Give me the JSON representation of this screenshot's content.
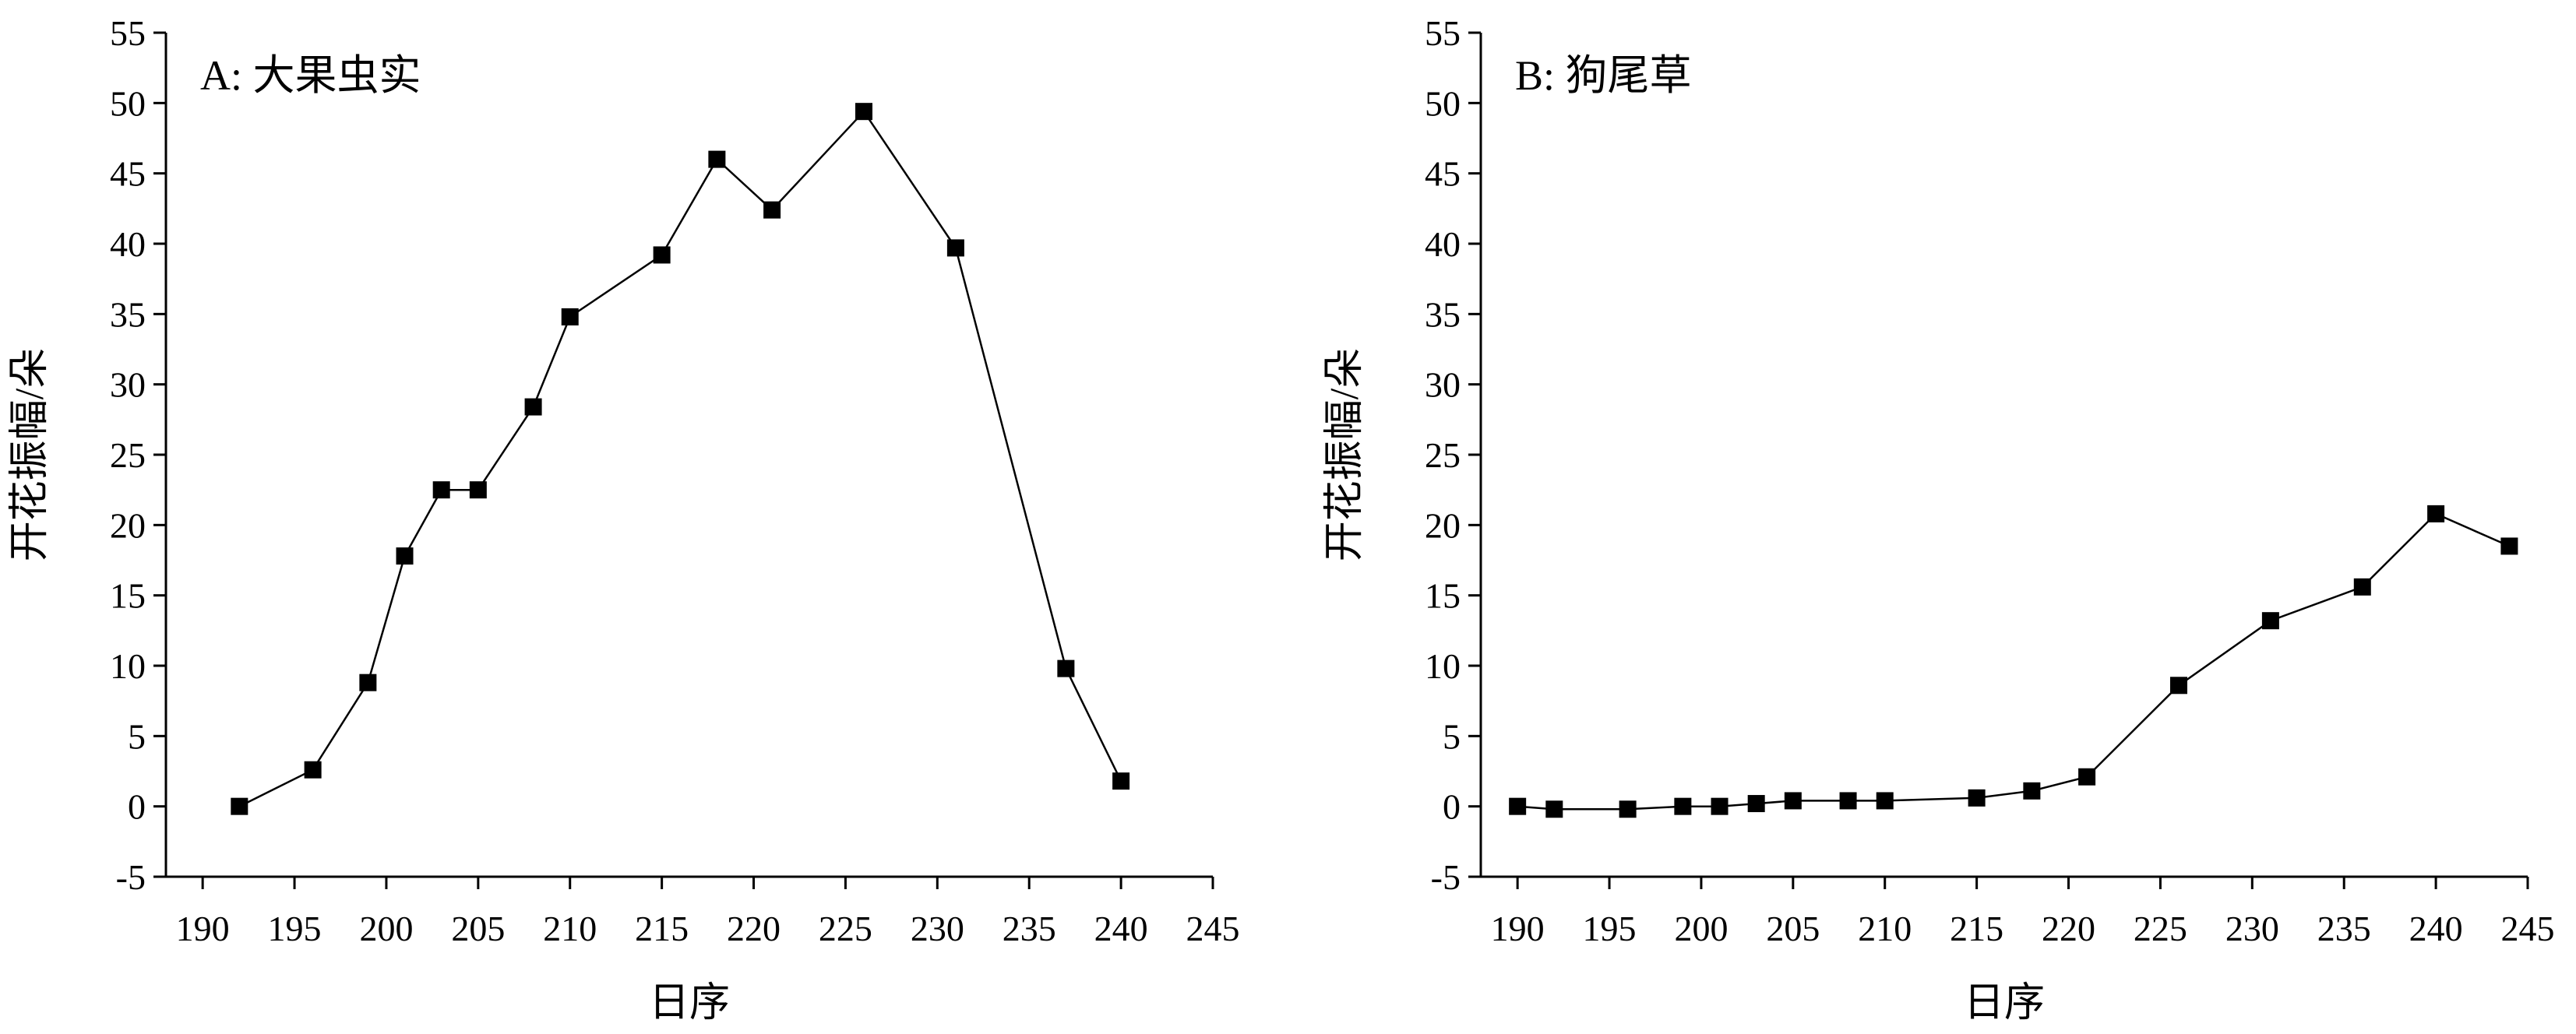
{
  "chart_data": [
    {
      "type": "line",
      "title": "A: 大果虫实",
      "xlabel": "日序",
      "ylabel": "开花振幅/朵",
      "xlim": [
        188,
        245
      ],
      "ylim": [
        -5,
        55
      ],
      "xticks": [
        190,
        195,
        200,
        205,
        210,
        215,
        220,
        225,
        230,
        235,
        240,
        245
      ],
      "yticks": [
        -5,
        0,
        5,
        10,
        15,
        20,
        25,
        30,
        35,
        40,
        45,
        50,
        55
      ],
      "grid": false,
      "series": [
        {
          "x": [
            192,
            196,
            199,
            201,
            203,
            205,
            208,
            210,
            215,
            218,
            221,
            226,
            231,
            237,
            240
          ],
          "y": [
            0,
            2.6,
            8.8,
            17.8,
            22.5,
            22.5,
            28.4,
            34.8,
            39.2,
            46.0,
            42.4,
            49.4,
            39.7,
            9.8,
            1.8
          ]
        }
      ]
    },
    {
      "type": "line",
      "title": "B: 狗尾草",
      "xlabel": "日序",
      "ylabel": "开花振幅/朵",
      "xlim": [
        188,
        245
      ],
      "ylim": [
        -5,
        55
      ],
      "xticks": [
        190,
        195,
        200,
        205,
        210,
        215,
        220,
        225,
        230,
        235,
        240,
        245
      ],
      "yticks": [
        -5,
        0,
        5,
        10,
        15,
        20,
        25,
        30,
        35,
        40,
        45,
        50,
        55
      ],
      "grid": false,
      "series": [
        {
          "x": [
            190,
            192,
            196,
            199,
            201,
            203,
            205,
            208,
            210,
            215,
            218,
            221,
            226,
            231,
            236,
            240,
            244
          ],
          "y": [
            0,
            -0.2,
            -0.2,
            0,
            0,
            0.2,
            0.4,
            0.4,
            0.4,
            0.6,
            1.1,
            2.1,
            8.6,
            13.2,
            15.6,
            20.8,
            18.5
          ]
        }
      ]
    }
  ]
}
